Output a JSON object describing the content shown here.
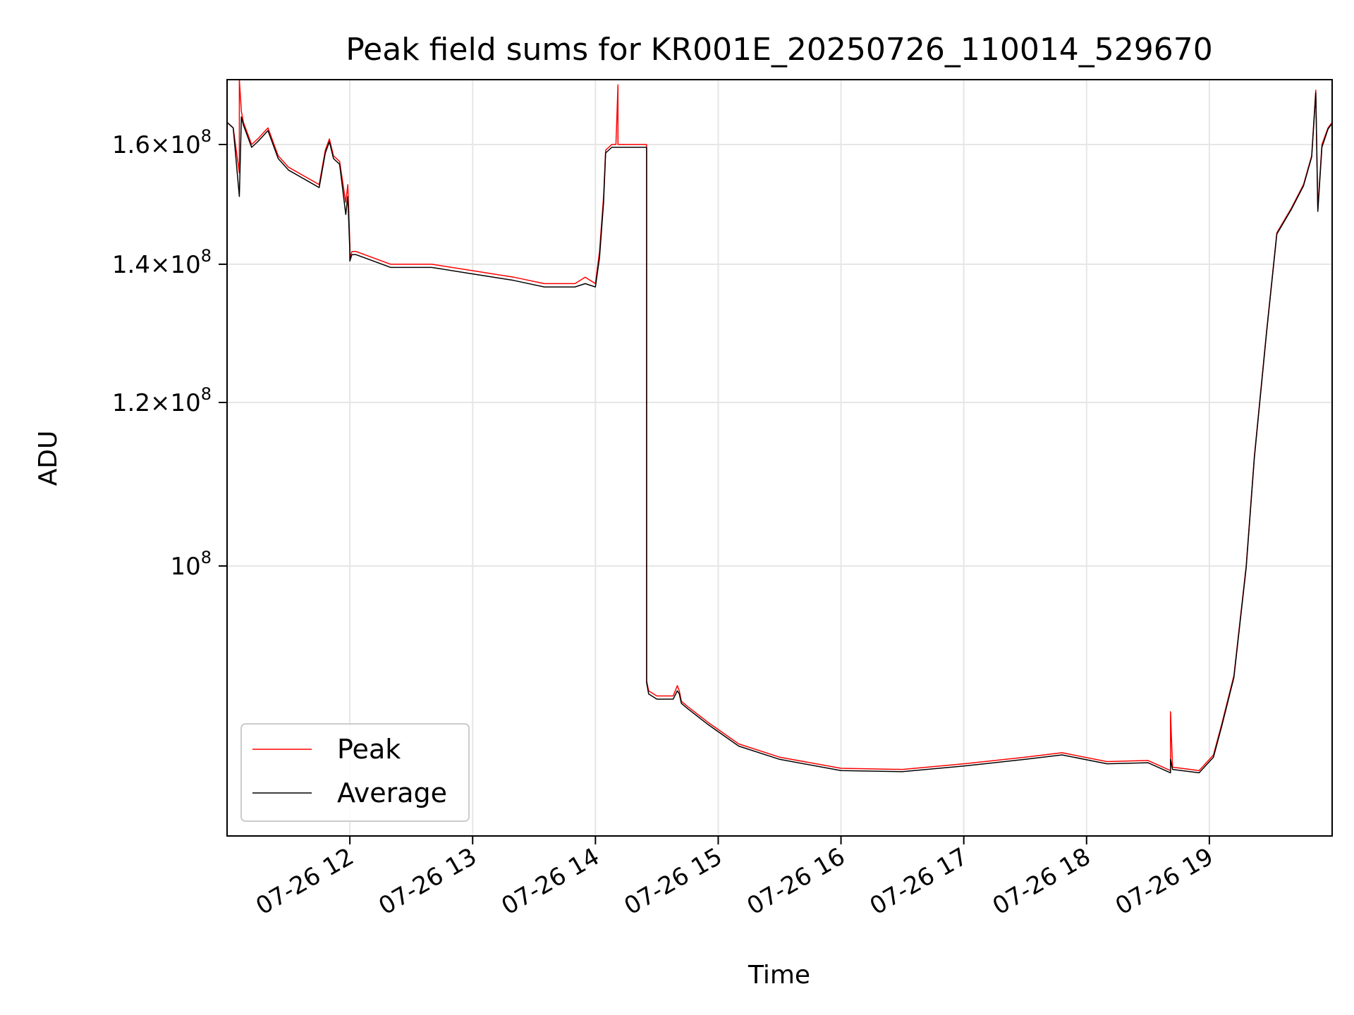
{
  "chart_data": {
    "type": "line",
    "title": "Peak field sums for KR001E_20250726_110014_529670",
    "xlabel": "Time",
    "ylabel": "ADU",
    "yscale": "log",
    "grid": true,
    "legend_position": "lower-left",
    "x_tick_labels": [
      "07-26 12",
      "07-26 13",
      "07-26 14",
      "07-26 15",
      "07-26 16",
      "07-26 17",
      "07-26 18",
      "07-26 19"
    ],
    "y_ticks": [
      {
        "value": 100000000,
        "mantissa": "",
        "base": "10",
        "exponent": "8"
      },
      {
        "value": 120000000,
        "mantissa": "1.2",
        "base": "10",
        "exponent": "8"
      },
      {
        "value": 140000000,
        "mantissa": "1.4",
        "base": "10",
        "exponent": "8"
      },
      {
        "value": 160000000,
        "mantissa": "1.6",
        "base": "10",
        "exponent": "8"
      }
    ],
    "xlim": [
      "2025-07-26 11:00",
      "2025-07-26 20:00"
    ],
    "ylim": [
      74000000,
      172000000
    ],
    "series": [
      {
        "name": "Peak",
        "color": "#ff0000",
        "x": [
          "2025-07-26 11:00",
          "2025-07-26 11:03",
          "2025-07-26 11:06",
          "2025-07-26 11:06",
          "2025-07-26 11:07",
          "2025-07-26 11:08",
          "2025-07-26 11:12",
          "2025-07-26 11:15",
          "2025-07-26 11:20",
          "2025-07-26 11:25",
          "2025-07-26 11:30",
          "2025-07-26 11:40",
          "2025-07-26 11:45",
          "2025-07-26 11:48",
          "2025-07-26 11:50",
          "2025-07-26 11:52",
          "2025-07-26 11:55",
          "2025-07-26 11:58",
          "2025-07-26 11:59",
          "2025-07-26 12:00",
          "2025-07-26 12:00",
          "2025-07-26 12:01",
          "2025-07-26 12:03",
          "2025-07-26 12:20",
          "2025-07-26 12:40",
          "2025-07-26 13:00",
          "2025-07-26 13:20",
          "2025-07-26 13:35",
          "2025-07-26 13:50",
          "2025-07-26 13:55",
          "2025-07-26 14:00",
          "2025-07-26 14:02",
          "2025-07-26 14:04",
          "2025-07-26 14:05",
          "2025-07-26 14:08",
          "2025-07-26 14:10",
          "2025-07-26 14:11",
          "2025-07-26 14:11",
          "2025-07-26 14:12",
          "2025-07-26 14:25",
          "2025-07-26 14:25",
          "2025-07-26 14:26",
          "2025-07-26 14:30",
          "2025-07-26 14:38",
          "2025-07-26 14:40",
          "2025-07-26 14:41",
          "2025-07-26 14:42",
          "2025-07-26 14:45",
          "2025-07-26 14:55",
          "2025-07-26 15:10",
          "2025-07-26 15:30",
          "2025-07-26 16:00",
          "2025-07-26 16:30",
          "2025-07-26 17:00",
          "2025-07-26 17:30",
          "2025-07-26 17:48",
          "2025-07-26 18:10",
          "2025-07-26 18:30",
          "2025-07-26 18:41",
          "2025-07-26 18:41",
          "2025-07-26 18:42",
          "2025-07-26 18:55",
          "2025-07-26 19:02",
          "2025-07-26 19:06",
          "2025-07-26 19:12",
          "2025-07-26 19:18",
          "2025-07-26 19:22",
          "2025-07-26 19:28",
          "2025-07-26 19:33",
          "2025-07-26 19:40",
          "2025-07-26 19:46",
          "2025-07-26 19:50",
          "2025-07-26 19:52",
          "2025-07-26 19:53",
          "2025-07-26 19:55",
          "2025-07-26 19:58",
          "2025-07-26 20:00"
        ],
        "values": [
          164000000,
          163000000,
          155000000,
          172000000,
          166000000,
          164000000,
          160000000,
          161000000,
          163000000,
          158000000,
          156000000,
          154000000,
          153000000,
          159000000,
          161000000,
          158000000,
          157000000,
          150000000,
          153000000,
          143000000,
          141000000,
          142000000,
          142000000,
          140000000,
          140000000,
          139000000,
          138000000,
          137000000,
          137000000,
          138000000,
          137000000,
          142000000,
          151000000,
          159000000,
          160000000,
          160000000,
          171000000,
          160000000,
          160000000,
          160000000,
          88000000,
          87000000,
          86500000,
          86500000,
          87500000,
          87000000,
          86000000,
          85500000,
          84000000,
          82000000,
          80800000,
          79800000,
          79700000,
          80200000,
          80800000,
          81200000,
          80400000,
          80500000,
          79600000,
          85000000,
          79900000,
          79600000,
          81000000,
          83800000,
          88500000,
          100000000,
          113000000,
          130000000,
          145000000,
          149000000,
          153000000,
          158000000,
          170000000,
          149000000,
          160000000,
          163000000,
          164000000
        ]
      },
      {
        "name": "Average",
        "color": "#000000",
        "x": [
          "2025-07-26 11:00",
          "2025-07-26 11:03",
          "2025-07-26 11:06",
          "2025-07-26 11:07",
          "2025-07-26 11:08",
          "2025-07-26 11:12",
          "2025-07-26 11:15",
          "2025-07-26 11:20",
          "2025-07-26 11:25",
          "2025-07-26 11:30",
          "2025-07-26 11:40",
          "2025-07-26 11:45",
          "2025-07-26 11:48",
          "2025-07-26 11:50",
          "2025-07-26 11:52",
          "2025-07-26 11:55",
          "2025-07-26 11:58",
          "2025-07-26 11:59",
          "2025-07-26 12:00",
          "2025-07-26 12:00",
          "2025-07-26 12:01",
          "2025-07-26 12:03",
          "2025-07-26 12:20",
          "2025-07-26 12:40",
          "2025-07-26 13:00",
          "2025-07-26 13:20",
          "2025-07-26 13:35",
          "2025-07-26 13:50",
          "2025-07-26 13:55",
          "2025-07-26 14:00",
          "2025-07-26 14:02",
          "2025-07-26 14:04",
          "2025-07-26 14:05",
          "2025-07-26 14:08",
          "2025-07-26 14:12",
          "2025-07-26 14:25",
          "2025-07-26 14:25",
          "2025-07-26 14:26",
          "2025-07-26 14:30",
          "2025-07-26 14:38",
          "2025-07-26 14:40",
          "2025-07-26 14:41",
          "2025-07-26 14:42",
          "2025-07-26 14:45",
          "2025-07-26 14:55",
          "2025-07-26 15:10",
          "2025-07-26 15:30",
          "2025-07-26 16:00",
          "2025-07-26 16:30",
          "2025-07-26 17:00",
          "2025-07-26 17:30",
          "2025-07-26 17:48",
          "2025-07-26 18:10",
          "2025-07-26 18:30",
          "2025-07-26 18:41",
          "2025-07-26 18:41",
          "2025-07-26 18:42",
          "2025-07-26 18:55",
          "2025-07-26 19:02",
          "2025-07-26 19:06",
          "2025-07-26 19:12",
          "2025-07-26 19:18",
          "2025-07-26 19:22",
          "2025-07-26 19:28",
          "2025-07-26 19:33",
          "2025-07-26 19:40",
          "2025-07-26 19:46",
          "2025-07-26 19:50",
          "2025-07-26 19:52",
          "2025-07-26 19:53",
          "2025-07-26 19:55",
          "2025-07-26 19:58",
          "2025-07-26 20:00"
        ],
        "values": [
          164000000,
          163000000,
          151000000,
          165000000,
          163500000,
          159500000,
          160500000,
          162500000,
          157500000,
          155500000,
          153500000,
          152500000,
          158500000,
          160500000,
          157500000,
          156500000,
          148000000,
          151000000,
          142000000,
          140500000,
          141500000,
          141500000,
          139500000,
          139500000,
          138500000,
          137500000,
          136500000,
          136500000,
          137000000,
          136500000,
          141000000,
          150000000,
          158500000,
          159500000,
          159500000,
          159500000,
          87800000,
          86700000,
          86200000,
          86200000,
          87000000,
          86700000,
          85800000,
          85300000,
          83800000,
          81800000,
          80600000,
          79600000,
          79500000,
          80000000,
          80600000,
          81000000,
          80200000,
          80300000,
          79400000,
          80600000,
          79700000,
          79400000,
          80800000,
          83600000,
          88300000,
          99800000,
          112800000,
          129800000,
          144800000,
          148800000,
          152800000,
          157800000,
          169500000,
          148500000,
          159500000,
          162800000,
          163800000
        ]
      }
    ]
  }
}
